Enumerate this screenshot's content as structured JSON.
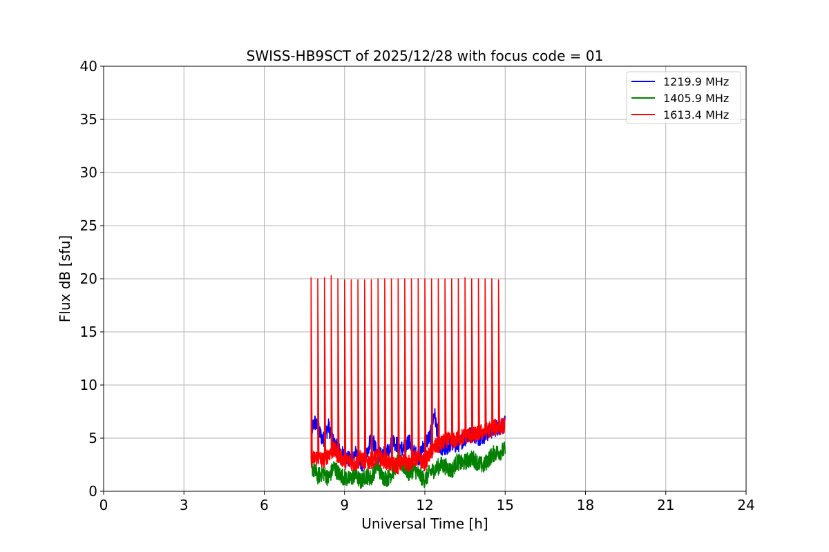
{
  "chart_data": {
    "type": "line",
    "title": "SWISS-HB9SCT of 2025/12/28 with focus code = 01",
    "xlabel": "Universal Time [h]",
    "ylabel": "Flux dB [sfu]",
    "xlim": [
      0,
      24
    ],
    "ylim": [
      0,
      40
    ],
    "xticks": [
      0,
      3,
      6,
      9,
      12,
      15,
      18,
      21,
      24
    ],
    "yticks": [
      0,
      5,
      10,
      15,
      20,
      25,
      30,
      35,
      40
    ],
    "grid": true,
    "legend_position": "top-right",
    "series": [
      {
        "name": "1219.9 MHz",
        "color": "#0000ff",
        "x": [
          7.75,
          7.9,
          8.0,
          8.2,
          8.4,
          8.6,
          8.8,
          9.0,
          9.2,
          9.4,
          9.6,
          9.8,
          10.0,
          10.2,
          10.4,
          10.6,
          10.8,
          11.0,
          11.2,
          11.4,
          11.6,
          11.8,
          12.0,
          12.2,
          12.35,
          12.5,
          12.6,
          12.8,
          13.0,
          13.2,
          13.4,
          13.6,
          13.8,
          14.0,
          14.2,
          14.4,
          14.6,
          14.8,
          15.0
        ],
        "values": [
          5.8,
          6.5,
          5.9,
          4.8,
          6.1,
          4.5,
          3.8,
          3.3,
          2.9,
          3.6,
          2.4,
          3.2,
          5.2,
          3.6,
          3.2,
          3.8,
          4.8,
          4.3,
          3.9,
          4.8,
          3.6,
          3.2,
          4.6,
          5.1,
          7.5,
          4.9,
          3.8,
          4.1,
          4.6,
          4.3,
          4.8,
          5.2,
          5.4,
          5.1,
          5.2,
          5.6,
          5.9,
          6.1,
          6.3
        ]
      },
      {
        "name": "1405.9 MHz",
        "color": "#008000",
        "x": [
          7.75,
          8.0,
          8.2,
          8.4,
          8.6,
          8.8,
          9.0,
          9.2,
          9.4,
          9.6,
          9.8,
          10.0,
          10.2,
          10.4,
          10.6,
          10.8,
          11.0,
          11.2,
          11.4,
          11.6,
          11.8,
          12.0,
          12.2,
          12.4,
          12.6,
          12.8,
          13.0,
          13.2,
          13.4,
          13.6,
          13.8,
          14.0,
          14.2,
          14.4,
          14.6,
          14.8,
          15.0
        ],
        "values": [
          2.4,
          1.4,
          1.8,
          1.2,
          2.3,
          1.6,
          1.3,
          1.1,
          1.6,
          0.9,
          1.5,
          1.2,
          2.6,
          1.4,
          1.2,
          1.8,
          2.9,
          2.4,
          1.7,
          2.1,
          1.5,
          1.1,
          1.8,
          2.1,
          2.5,
          2.3,
          1.9,
          2.8,
          2.6,
          2.9,
          3.1,
          2.6,
          2.4,
          3.1,
          3.6,
          3.7,
          3.9
        ]
      },
      {
        "name": "1613.4 MHz",
        "color": "#ff0000",
        "x": [
          7.75,
          8.0,
          8.2,
          8.4,
          8.6,
          8.8,
          9.0,
          9.2,
          9.4,
          9.6,
          9.8,
          10.0,
          10.2,
          10.4,
          10.6,
          10.8,
          11.0,
          11.2,
          11.4,
          11.6,
          11.8,
          12.0,
          12.2,
          12.4,
          12.6,
          12.8,
          13.0,
          13.2,
          13.4,
          13.6,
          13.8,
          14.0,
          14.2,
          14.4,
          14.6,
          14.8,
          15.0
        ],
        "values": [
          3.0,
          3.2,
          2.9,
          3.5,
          3.9,
          3.3,
          2.9,
          2.8,
          2.6,
          3.1,
          2.7,
          2.9,
          3.2,
          3.0,
          2.8,
          2.5,
          2.4,
          2.8,
          2.6,
          3.1,
          3.0,
          2.7,
          3.6,
          4.2,
          4.4,
          4.9,
          4.6,
          4.9,
          5.1,
          5.3,
          5.2,
          5.5,
          5.6,
          5.8,
          6.0,
          6.1,
          6.2
        ]
      }
    ],
    "spikes": {
      "series": "1613.4 MHz",
      "x": [
        7.75,
        8.0,
        8.25,
        8.5,
        8.75,
        9.0,
        9.25,
        9.5,
        9.75,
        10.0,
        10.25,
        10.5,
        10.75,
        11.0,
        11.25,
        11.5,
        11.75,
        12.0,
        12.25,
        12.5,
        12.75,
        13.0,
        13.25,
        13.5,
        13.75,
        14.0,
        14.25,
        14.5,
        14.75
      ],
      "values": [
        20.1,
        20.0,
        20.1,
        20.3,
        20.0,
        19.9,
        19.9,
        19.9,
        19.9,
        19.9,
        20.0,
        20.0,
        20.0,
        20.0,
        20.0,
        20.0,
        20.0,
        20.0,
        20.0,
        20.0,
        20.0,
        20.0,
        20.0,
        20.1,
        20.0,
        20.0,
        20.0,
        20.0,
        19.9
      ]
    }
  }
}
